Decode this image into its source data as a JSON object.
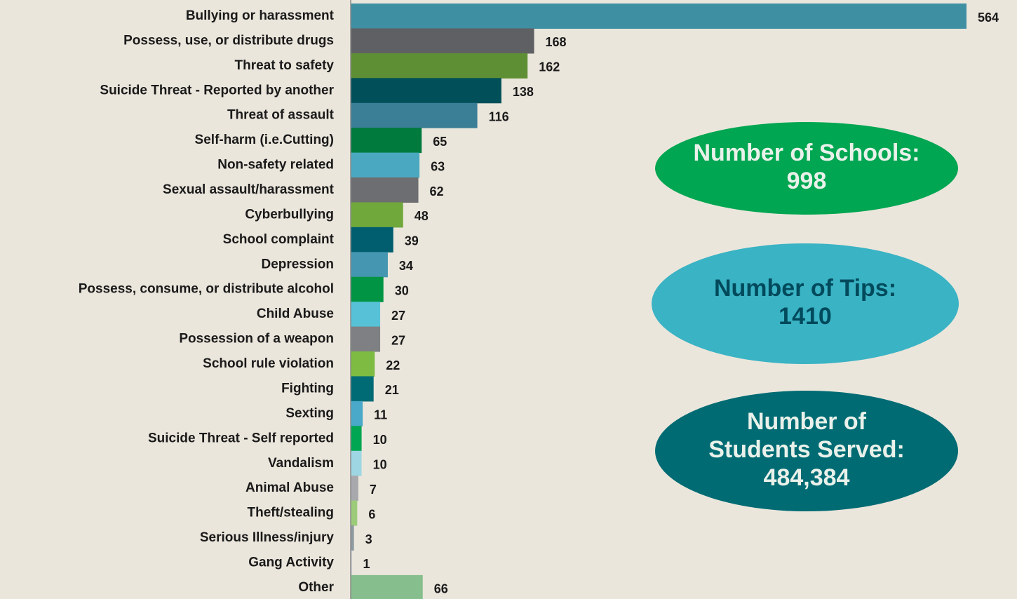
{
  "chart_data": {
    "type": "bar",
    "orientation": "horizontal",
    "categories": [
      "Bullying or harassment",
      "Possess, use, or distribute drugs",
      "Threat to safety",
      "Suicide Threat - Reported by another",
      "Threat of assault",
      "Self-harm (i.e.Cutting)",
      "Non-safety related",
      "Sexual assault/harassment",
      "Cyberbullying",
      "School complaint",
      "Depression",
      "Possess, consume, or distribute alcohol",
      "Child Abuse",
      "Possession of a weapon",
      "School rule violation",
      "Fighting",
      "Sexting",
      "Suicide Threat - Self reported",
      "Vandalism",
      "Animal Abuse",
      "Theft/stealing",
      "Serious Illness/injury",
      "Gang Activity",
      "Other"
    ],
    "values": [
      564,
      168,
      162,
      138,
      116,
      65,
      63,
      62,
      48,
      39,
      34,
      30,
      27,
      27,
      22,
      21,
      11,
      10,
      10,
      7,
      6,
      3,
      1,
      66
    ],
    "colors": [
      "#3f8fa3",
      "#5f6063",
      "#5e8f35",
      "#004f59",
      "#3b7f96",
      "#007a3d",
      "#4aa9c0",
      "#6d6e71",
      "#70a83b",
      "#005e6e",
      "#4596b0",
      "#009444",
      "#57c1d7",
      "#7f8083",
      "#7dbb42",
      "#006b75",
      "#4aa8c9",
      "#00a651",
      "#9fd6e3",
      "#a7a9ac",
      "#9ccc7a",
      "#8e9aa0",
      "#b8c4cc",
      "#86bf8d"
    ],
    "annotations": [
      {
        "lines": [
          "Number of Schools:",
          "998"
        ],
        "color": "#00a651",
        "text_color": "#e9f1ea"
      },
      {
        "lines": [
          "Number of Tips:",
          "1410"
        ],
        "color": "#3ab3c4",
        "text_color": "#004a5c"
      },
      {
        "lines": [
          "Number of",
          "Students Served:",
          "484,384"
        ],
        "color": "#006b73",
        "text_color": "#e9f1ea"
      }
    ]
  }
}
